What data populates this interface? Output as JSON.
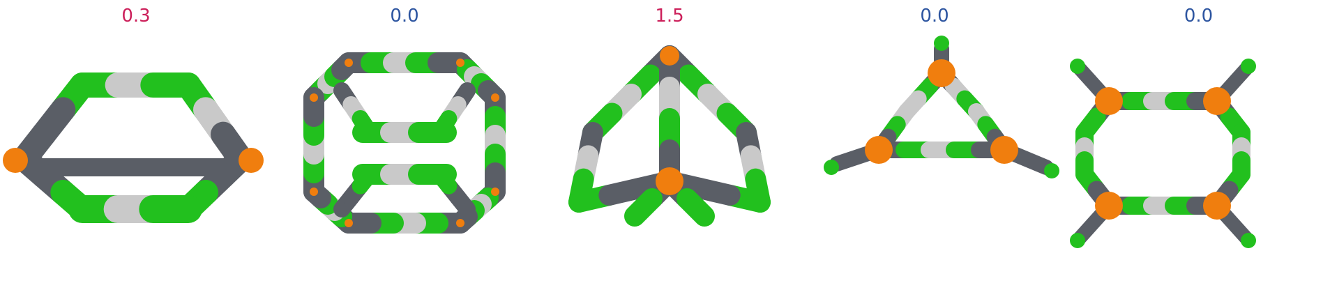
{
  "colors": {
    "green": "#22c01e",
    "gray": "#5a5e66",
    "silver": "#c9c9c9",
    "orange": "#f07e0e",
    "label_positive": "#cc1f5a",
    "label_zero": "#2d55a0"
  },
  "panels": [
    {
      "label": "0.3",
      "label_color": "#cc1f5a"
    },
    {
      "label": "0.0",
      "label_color": "#2d55a0"
    },
    {
      "label": "1.5",
      "label_color": "#cc1f5a"
    },
    {
      "label": "0.0",
      "label_color": "#2d55a0"
    },
    {
      "label": "0.0",
      "label_color": "#2d55a0"
    }
  ]
}
